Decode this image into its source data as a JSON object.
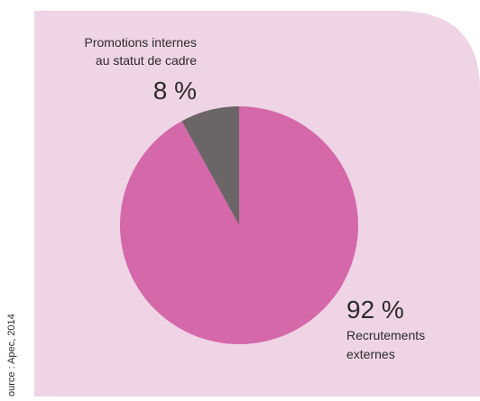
{
  "chart_data": {
    "type": "pie",
    "categories": [
      "Promotions internes\nau statut de cadre",
      "Recrutements\nexternes"
    ],
    "values": [
      8,
      92
    ],
    "value_labels": [
      "8 %",
      "92 %"
    ],
    "colors": [
      "#6b6568",
      "#d468a9"
    ],
    "source": "ource : Apec, 2014"
  }
}
